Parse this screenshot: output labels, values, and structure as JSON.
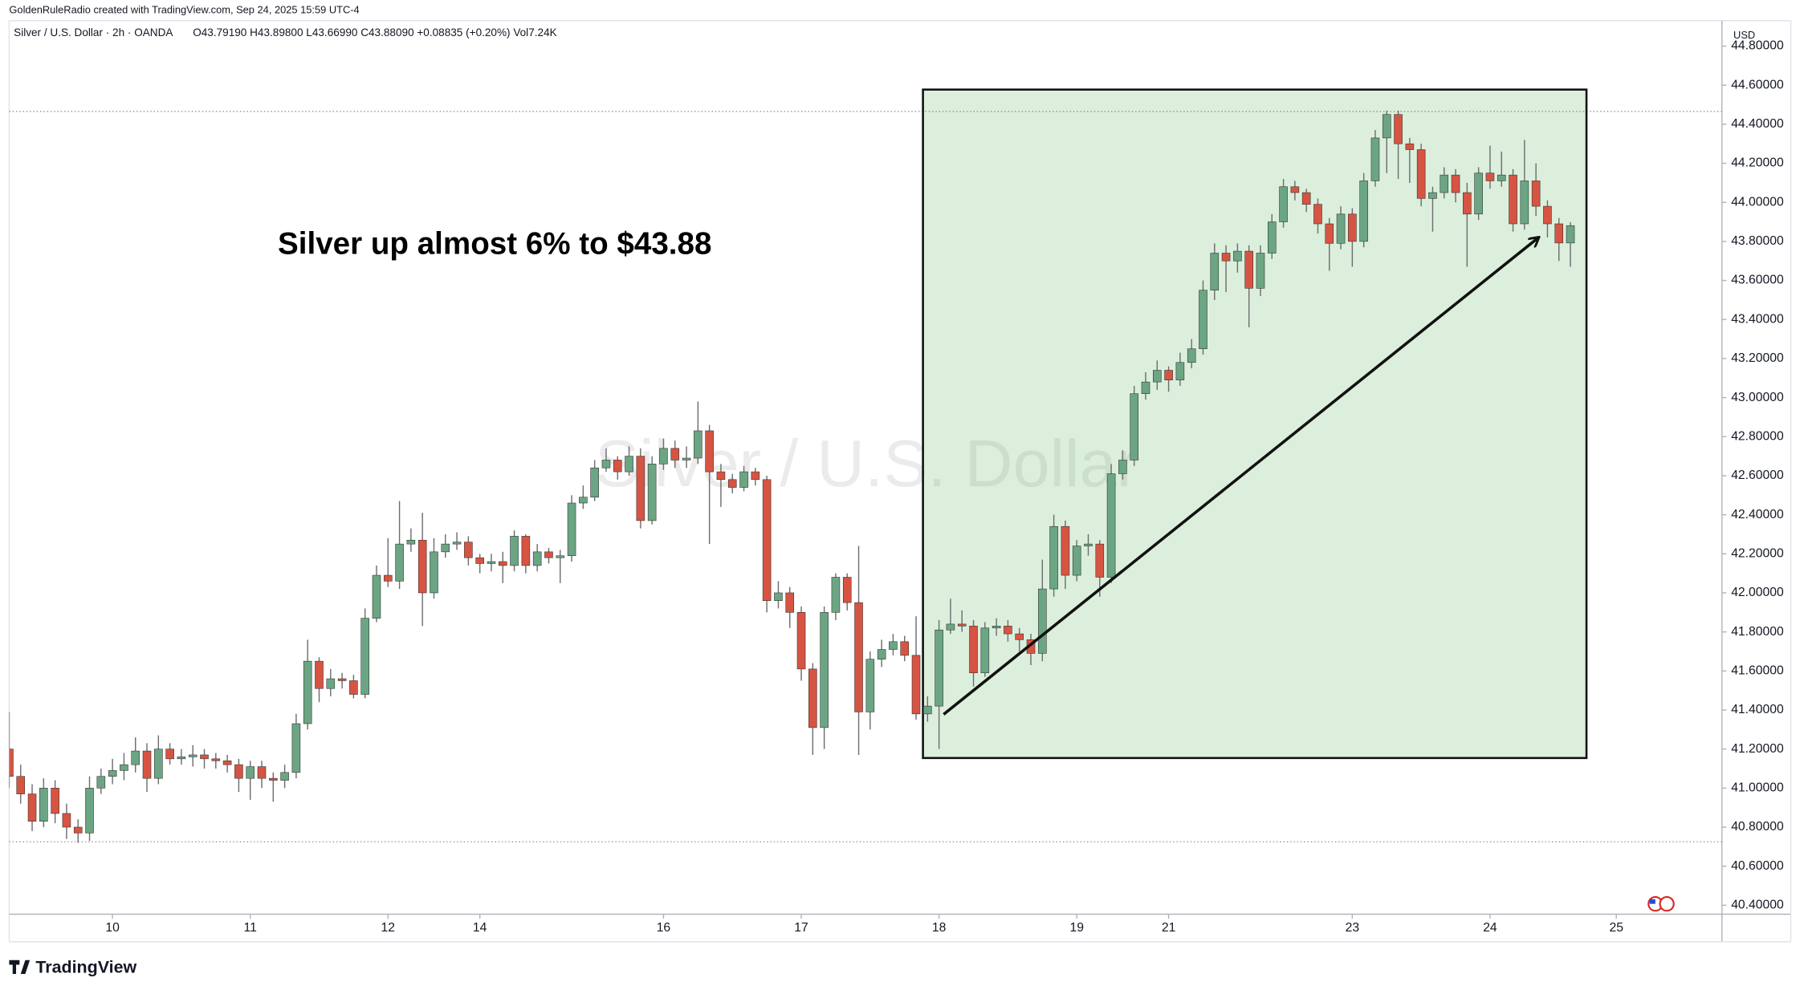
{
  "credit": "GoldenRuleRadio created with TradingView.com, Sep 24, 2025 15:59 UTC-4",
  "brand": "TradingView",
  "chart_data": {
    "type": "candlestick",
    "title": "Silver / U.S. Dollar · 2h · OANDA",
    "ohlc_label": "O43.79190 H43.89800 L43.66990 C43.88090 +0.08835 (+0.20%) Vol7.24K",
    "watermark": "Silver / U.S. Dollar",
    "annotation": "Silver up almost 6% to $43.88",
    "currency": "USD",
    "up_color": "#6ba583",
    "down_color": "#d75442",
    "wick_color": "#6e6e70",
    "grid": false,
    "ylim": [
      40.36,
      44.907
    ],
    "yticks": [
      {
        "value": 40.4,
        "label": "40.40000"
      },
      {
        "value": 40.6,
        "label": "40.60000"
      },
      {
        "value": 40.8,
        "label": "40.80000"
      },
      {
        "value": 41.0,
        "label": "41.00000"
      },
      {
        "value": 41.2,
        "label": "41.20000"
      },
      {
        "value": 41.4,
        "label": "41.40000"
      },
      {
        "value": 41.6,
        "label": "41.60000"
      },
      {
        "value": 41.8,
        "label": "41.80000"
      },
      {
        "value": 42.0,
        "label": "42.00000"
      },
      {
        "value": 42.2,
        "label": "42.20000"
      },
      {
        "value": 42.4,
        "label": "42.40000"
      },
      {
        "value": 42.6,
        "label": "42.60000"
      },
      {
        "value": 42.8,
        "label": "42.80000"
      },
      {
        "value": 43.0,
        "label": "43.00000"
      },
      {
        "value": 43.2,
        "label": "43.20000"
      },
      {
        "value": 43.4,
        "label": "43.40000"
      },
      {
        "value": 43.6,
        "label": "43.60000"
      },
      {
        "value": 43.8,
        "label": "43.80000"
      },
      {
        "value": 44.0,
        "label": "44.00000"
      },
      {
        "value": 44.2,
        "label": "44.20000"
      },
      {
        "value": 44.4,
        "label": "44.40000"
      },
      {
        "value": 44.6,
        "label": "44.60000"
      },
      {
        "value": 44.8,
        "label": "44.80000"
      }
    ],
    "categories": [
      null,
      null,
      null,
      null,
      null,
      null,
      null,
      null,
      null,
      "10",
      null,
      null,
      null,
      null,
      null,
      null,
      null,
      null,
      null,
      null,
      null,
      "11",
      null,
      null,
      null,
      null,
      null,
      null,
      null,
      null,
      null,
      null,
      null,
      "12",
      null,
      null,
      null,
      null,
      null,
      null,
      null,
      "14",
      null,
      null,
      null,
      null,
      null,
      null,
      null,
      null,
      null,
      null,
      null,
      null,
      null,
      null,
      null,
      "16",
      null,
      null,
      null,
      null,
      null,
      null,
      null,
      null,
      null,
      null,
      null,
      "17",
      null,
      null,
      null,
      null,
      null,
      null,
      null,
      null,
      null,
      null,
      null,
      "18",
      null,
      null,
      null,
      null,
      null,
      null,
      null,
      null,
      null,
      null,
      null,
      "19",
      null,
      null,
      null,
      null,
      null,
      null,
      null,
      "21",
      null,
      null,
      null,
      null,
      null,
      null,
      null,
      null,
      null,
      null,
      null,
      null,
      null,
      null,
      null,
      "23",
      null,
      null,
      null,
      null,
      null,
      null,
      null,
      null,
      null,
      null,
      null,
      "24",
      null,
      null,
      null,
      null,
      null,
      null,
      null,
      null,
      null,
      null,
      "25",
      null
    ],
    "open": [
      41.2,
      41.06,
      40.97,
      40.83,
      41.0,
      40.87,
      40.8,
      40.77,
      41.0,
      41.06,
      41.09,
      41.12,
      41.19,
      41.05,
      41.2,
      41.15,
      41.16,
      41.17,
      41.15,
      41.14,
      41.12,
      41.05,
      41.11,
      41.05,
      41.04,
      41.08,
      41.33,
      41.65,
      41.51,
      41.56,
      41.55,
      41.48,
      41.87,
      42.09,
      42.06,
      42.25,
      42.27,
      42.0,
      42.21,
      42.25,
      42.26,
      42.18,
      42.15,
      42.16,
      42.14,
      42.29,
      42.14,
      42.21,
      42.18,
      42.19,
      42.46,
      42.49,
      42.64,
      42.68,
      42.62,
      42.7,
      42.37,
      42.66,
      42.74,
      42.68,
      42.69,
      42.83,
      42.62,
      42.58,
      42.54,
      42.62,
      42.58,
      41.96,
      42.0,
      41.9,
      41.61,
      41.31,
      41.9,
      42.08,
      41.95,
      41.39,
      41.66,
      41.71,
      41.75,
      41.68,
      41.38,
      41.42,
      41.81,
      41.84,
      41.83,
      41.59,
      41.82,
      41.83,
      41.79,
      41.76,
      41.69,
      42.02,
      42.34,
      42.09,
      42.24,
      42.25,
      42.08,
      42.61,
      42.68,
      43.02,
      43.08,
      43.14,
      43.09,
      43.18,
      43.25,
      43.55,
      43.74,
      43.7,
      43.75,
      43.56,
      43.74,
      43.9,
      44.08,
      44.05,
      43.99,
      43.89,
      43.79,
      43.94,
      43.8,
      44.11,
      44.33,
      44.45,
      44.3,
      44.27,
      44.02,
      44.05,
      44.14,
      44.05,
      43.94,
      44.15,
      44.11,
      44.14,
      43.89,
      44.11,
      43.98,
      43.89,
      43.7919,
      null,
      null,
      null,
      null,
      null
    ],
    "high": [
      41.39,
      41.12,
      41.02,
      41.05,
      41.04,
      40.92,
      40.84,
      41.06,
      41.1,
      41.15,
      41.18,
      41.26,
      41.23,
      41.27,
      41.23,
      41.2,
      41.22,
      41.2,
      41.18,
      41.17,
      41.15,
      41.14,
      41.14,
      41.08,
      41.12,
      41.38,
      41.76,
      41.67,
      41.61,
      41.59,
      41.58,
      41.92,
      42.14,
      42.28,
      42.47,
      42.33,
      42.41,
      42.28,
      42.3,
      42.31,
      42.29,
      42.2,
      42.2,
      42.21,
      42.32,
      42.3,
      42.25,
      42.23,
      42.22,
      42.5,
      42.55,
      42.68,
      42.74,
      42.7,
      42.75,
      42.74,
      42.7,
      42.79,
      42.78,
      42.75,
      42.98,
      42.86,
      42.66,
      42.61,
      42.65,
      42.64,
      42.6,
      42.06,
      42.03,
      41.93,
      41.64,
      41.93,
      42.1,
      42.1,
      42.24,
      41.7,
      41.76,
      41.79,
      41.78,
      41.88,
      41.47,
      41.86,
      41.97,
      41.91,
      41.86,
      41.85,
      41.87,
      41.86,
      41.82,
      41.79,
      42.17,
      42.4,
      42.37,
      42.27,
      42.3,
      42.27,
      42.66,
      42.73,
      43.06,
      43.13,
      43.19,
      43.16,
      43.23,
      43.3,
      43.6,
      43.79,
      43.78,
      43.79,
      43.78,
      43.78,
      43.94,
      44.12,
      44.11,
      44.07,
      44.02,
      43.92,
      43.98,
      43.97,
      44.15,
      44.37,
      44.47,
      44.47,
      44.33,
      44.3,
      44.08,
      44.18,
      44.17,
      44.1,
      44.18,
      44.29,
      44.26,
      44.17,
      44.32,
      44.2,
      44.01,
      43.92,
      43.898,
      null,
      null,
      null,
      null,
      null
    ],
    "low": [
      41.0,
      40.92,
      40.78,
      40.8,
      40.82,
      40.74,
      40.72,
      40.73,
      40.97,
      41.02,
      41.04,
      41.08,
      40.98,
      41.02,
      41.12,
      41.12,
      41.11,
      41.1,
      41.1,
      41.08,
      40.98,
      40.94,
      41.0,
      40.93,
      41.0,
      41.05,
      41.3,
      41.44,
      41.47,
      41.51,
      41.46,
      41.46,
      41.85,
      42.03,
      42.02,
      42.21,
      41.83,
      41.97,
      42.18,
      42.22,
      42.14,
      42.1,
      42.11,
      42.05,
      42.11,
      42.1,
      42.11,
      42.15,
      42.05,
      42.16,
      42.43,
      42.47,
      42.62,
      42.58,
      42.6,
      42.33,
      42.35,
      42.63,
      42.64,
      42.64,
      42.66,
      42.25,
      42.44,
      42.51,
      42.52,
      42.55,
      41.9,
      41.92,
      41.82,
      41.55,
      41.17,
      41.2,
      41.86,
      41.91,
      41.17,
      41.3,
      41.62,
      41.68,
      41.65,
      41.35,
      41.34,
      41.2,
      41.79,
      41.8,
      41.52,
      41.57,
      41.78,
      41.75,
      41.7,
      41.63,
      41.65,
      41.98,
      42.02,
      42.06,
      42.19,
      41.98,
      42.05,
      42.58,
      42.65,
      42.99,
      43.04,
      43.03,
      43.06,
      43.15,
      43.22,
      43.5,
      43.54,
      43.64,
      43.36,
      43.52,
      43.71,
      43.87,
      44.01,
      43.95,
      43.84,
      43.65,
      43.76,
      43.67,
      43.77,
      44.08,
      44.15,
      44.12,
      44.1,
      43.98,
      43.85,
      44.02,
      44.0,
      43.67,
      43.91,
      44.07,
      44.08,
      43.85,
      43.86,
      43.93,
      43.82,
      43.7,
      43.6699,
      null,
      null,
      null,
      null,
      null
    ],
    "close": [
      41.06,
      40.97,
      40.83,
      41.0,
      40.87,
      40.8,
      40.77,
      41.0,
      41.06,
      41.09,
      41.12,
      41.19,
      41.05,
      41.2,
      41.15,
      41.16,
      41.17,
      41.15,
      41.14,
      41.12,
      41.05,
      41.11,
      41.05,
      41.04,
      41.08,
      41.33,
      41.65,
      41.51,
      41.56,
      41.55,
      41.48,
      41.87,
      42.09,
      42.06,
      42.25,
      42.27,
      42.0,
      42.21,
      42.25,
      42.26,
      42.18,
      42.15,
      42.16,
      42.14,
      42.29,
      42.14,
      42.21,
      42.18,
      42.19,
      42.46,
      42.49,
      42.64,
      42.68,
      42.62,
      42.7,
      42.37,
      42.66,
      42.74,
      42.68,
      42.69,
      42.83,
      42.62,
      42.58,
      42.54,
      42.62,
      42.58,
      41.96,
      42.0,
      41.9,
      41.61,
      41.31,
      41.9,
      42.08,
      41.95,
      41.39,
      41.66,
      41.71,
      41.75,
      41.68,
      41.38,
      41.42,
      41.81,
      41.84,
      41.83,
      41.59,
      41.82,
      41.83,
      41.79,
      41.76,
      41.69,
      42.02,
      42.34,
      42.09,
      42.24,
      42.25,
      42.08,
      42.61,
      42.68,
      43.02,
      43.08,
      43.14,
      43.09,
      43.18,
      43.25,
      43.55,
      43.74,
      43.7,
      43.75,
      43.56,
      43.74,
      43.9,
      44.08,
      44.05,
      43.99,
      43.89,
      43.79,
      43.94,
      43.8,
      44.11,
      44.33,
      44.45,
      44.3,
      44.27,
      44.02,
      44.05,
      44.14,
      44.05,
      43.94,
      44.15,
      44.11,
      44.14,
      43.89,
      44.11,
      43.98,
      43.89,
      43.7919,
      43.8809,
      null,
      null,
      null,
      null,
      null
    ]
  }
}
